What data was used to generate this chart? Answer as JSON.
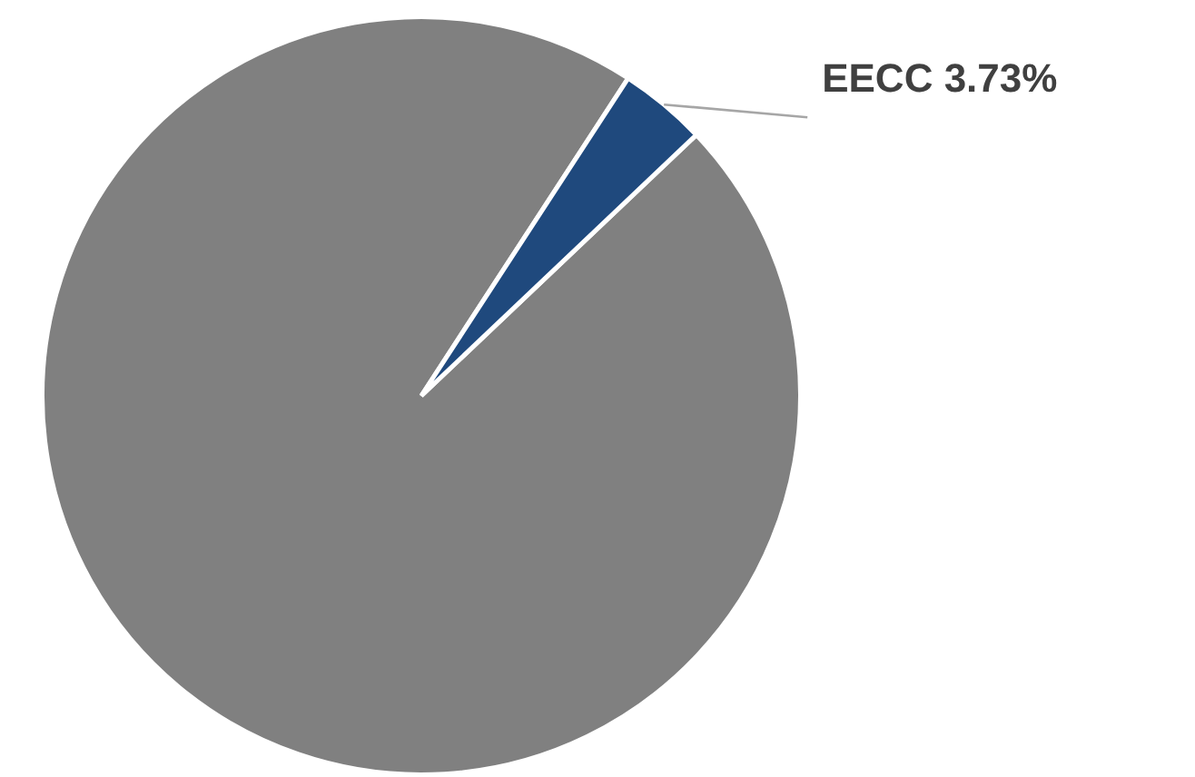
{
  "chart_data": {
    "type": "pie",
    "categories": [
      null,
      "EECC"
    ],
    "values": [
      96.27,
      3.73
    ],
    "colors": [
      "#808080",
      "#1f497d"
    ],
    "value_labels": [
      null,
      "3.73%"
    ]
  }
}
